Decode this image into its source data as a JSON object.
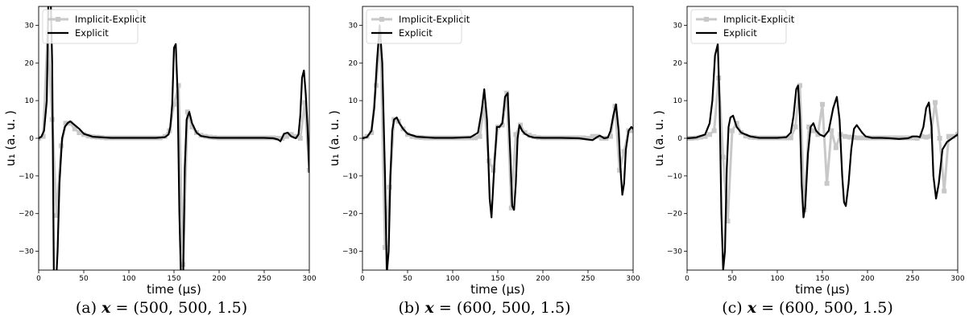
{
  "chart_data": [
    {
      "type": "line",
      "panel_label": "(a)",
      "caption_var": "x",
      "caption_eq": "= (500, 500, 1.5)",
      "xlabel": "time (μs)",
      "ylabel": "u₁ (a. u. )",
      "xlim": [
        0,
        300
      ],
      "ylim": [
        -35,
        35
      ],
      "xticks": [
        "0",
        "50",
        "100",
        "150",
        "200",
        "250",
        "300"
      ],
      "yticks": [
        "−30",
        "−20",
        "−10",
        "0",
        "10",
        "20",
        "30"
      ],
      "legend_position": "top-left",
      "series": [
        {
          "name": "Implicit-Explicit",
          "color": "#c8c8c8",
          "x": [
            0,
            5,
            10,
            15,
            20,
            25,
            30,
            35,
            40,
            45,
            50,
            55,
            60,
            65,
            70,
            75,
            80,
            85,
            90,
            95,
            100,
            105,
            110,
            115,
            120,
            125,
            130,
            135,
            140,
            145,
            150,
            155,
            160,
            165,
            170,
            175,
            180,
            185,
            190,
            195,
            200,
            205,
            210,
            215,
            220,
            225,
            230,
            235,
            240,
            245,
            250,
            255,
            260,
            265,
            270,
            275,
            280,
            285,
            290,
            295,
            300
          ],
          "y": [
            0,
            0.5,
            28,
            5,
            -20.5,
            -2,
            4,
            4,
            2.5,
            1.5,
            1,
            0.6,
            0.4,
            0.3,
            0.2,
            0.1,
            0.1,
            0.1,
            0.1,
            0.1,
            0.1,
            0.1,
            0.1,
            0.1,
            0.1,
            0.1,
            0.1,
            0.1,
            0.5,
            2,
            9,
            14,
            -33.5,
            7,
            3,
            1.5,
            0.8,
            0.5,
            0.3,
            0.2,
            0.1,
            0.1,
            0.1,
            0.1,
            0.1,
            0.1,
            0.1,
            0.1,
            0.1,
            0.1,
            0.1,
            0.1,
            0.1,
            0,
            0,
            0.5,
            1,
            0.5,
            0,
            9.5,
            -8.5
          ]
        },
        {
          "name": "Explicit",
          "color": "#000000",
          "x": [
            0,
            3,
            6,
            9,
            11,
            13,
            15,
            17,
            19,
            21,
            23,
            26,
            29,
            32,
            35,
            40,
            45,
            50,
            60,
            80,
            100,
            130,
            140,
            144,
            146,
            148,
            150,
            152,
            154,
            156,
            158,
            160,
            162,
            164,
            167,
            170,
            175,
            180,
            190,
            200,
            220,
            250,
            260,
            265,
            268,
            272,
            276,
            280,
            285,
            288,
            290,
            292,
            294,
            296,
            298,
            300
          ],
          "y": [
            0,
            0.4,
            2,
            10,
            40,
            40,
            20,
            -40,
            -40,
            -30,
            -12,
            0,
            3,
            4,
            4.5,
            3.5,
            2.5,
            1.2,
            0.4,
            0.1,
            0.1,
            0.1,
            0.3,
            1,
            3,
            9,
            24,
            25,
            12,
            -20,
            -40,
            -40,
            -8,
            5,
            7,
            4,
            1.5,
            0.6,
            0.2,
            0.1,
            0.1,
            0.1,
            0,
            -0.3,
            -0.8,
            1.2,
            1.5,
            0.5,
            0,
            1,
            6,
            16,
            18,
            12,
            3,
            -9
          ]
        }
      ]
    },
    {
      "type": "line",
      "panel_label": "(b)",
      "caption_var": "x",
      "caption_eq": "= (600, 500, 1.5)",
      "xlabel": "time (μs)",
      "ylabel": "u₁ (a. u. )",
      "xlim": [
        0,
        300
      ],
      "ylim": [
        -35,
        35
      ],
      "xticks": [
        "0",
        "50",
        "100",
        "150",
        "200",
        "250",
        "300"
      ],
      "yticks": [
        "−30",
        "−20",
        "−10",
        "0",
        "10",
        "20",
        "30"
      ],
      "legend_position": "top-left",
      "series": [
        {
          "name": "Implicit-Explicit",
          "color": "#c8c8c8",
          "x": [
            0,
            5,
            10,
            15,
            20,
            25,
            30,
            35,
            40,
            45,
            50,
            55,
            60,
            65,
            70,
            75,
            80,
            85,
            90,
            95,
            100,
            105,
            110,
            115,
            120,
            125,
            130,
            135,
            140,
            145,
            150,
            155,
            160,
            165,
            170,
            175,
            180,
            185,
            190,
            195,
            200,
            205,
            210,
            215,
            220,
            225,
            230,
            235,
            240,
            245,
            250,
            255,
            260,
            265,
            270,
            275,
            280,
            285,
            290,
            295,
            300
          ],
          "y": [
            0,
            0.5,
            1.5,
            14,
            28,
            -29,
            -13,
            5,
            4.5,
            2.5,
            1,
            0.5,
            0.3,
            0.2,
            0.1,
            0.1,
            0.1,
            0.1,
            0.1,
            0.1,
            0.1,
            0.1,
            0.1,
            0.1,
            0.1,
            0.1,
            0.5,
            9,
            -6,
            -8.5,
            3,
            3.5,
            12,
            -18.5,
            1,
            3.5,
            1.5,
            0.8,
            0.4,
            0.2,
            0.1,
            0.1,
            0.1,
            0.1,
            0.1,
            0.1,
            0.1,
            0.1,
            0.1,
            0.1,
            0,
            0.5,
            0.5,
            0,
            0,
            0.5,
            8.5,
            -8.5,
            -3.5,
            2,
            2
          ]
        },
        {
          "name": "Explicit",
          "color": "#000000",
          "x": [
            0,
            5,
            10,
            13,
            16,
            19,
            22,
            25,
            27,
            29,
            31,
            33,
            35,
            38,
            41,
            45,
            50,
            60,
            80,
            100,
            120,
            128,
            132,
            135,
            138,
            141,
            143,
            146,
            149,
            152,
            155,
            158,
            161,
            164,
            166,
            168,
            170,
            172,
            174,
            177,
            180,
            185,
            190,
            200,
            220,
            240,
            255,
            260,
            263,
            268,
            272,
            275,
            278,
            281,
            284,
            286,
            288,
            290,
            292,
            295,
            298,
            300
          ],
          "y": [
            0,
            0.3,
            2,
            8,
            20,
            30,
            20,
            -10,
            -36,
            -30,
            -10,
            2,
            5,
            5.5,
            4,
            2.5,
            1.2,
            0.4,
            0.1,
            0.1,
            0.3,
            1.5,
            7,
            13,
            5,
            -16,
            -21,
            -8,
            3,
            3,
            4,
            11,
            12,
            -5,
            -18,
            -19,
            -12,
            0,
            3.5,
            2,
            1.2,
            0.5,
            0.2,
            0.1,
            0.1,
            0,
            -0.5,
            0.3,
            0.7,
            0,
            0.2,
            2,
            6,
            9,
            2,
            -8,
            -15,
            -12,
            -3,
            2,
            3,
            2.5
          ]
        }
      ]
    },
    {
      "type": "line",
      "panel_label": "(c)",
      "caption_var": "x",
      "caption_eq": "= (600, 500, 1.5)",
      "xlabel": "time (μs)",
      "ylabel": "u₁ (a. u. )",
      "xlim": [
        0,
        300
      ],
      "ylim": [
        -35,
        35
      ],
      "xticks": [
        "0",
        "50",
        "100",
        "150",
        "200",
        "250",
        "300"
      ],
      "yticks": [
        "−30",
        "−20",
        "−10",
        "0",
        "10",
        "20",
        "30"
      ],
      "legend_position": "top-left",
      "series": [
        {
          "name": "Implicit-Explicit",
          "color": "#c8c8c8",
          "x": [
            0,
            5,
            10,
            15,
            20,
            25,
            30,
            35,
            40,
            45,
            50,
            55,
            60,
            65,
            70,
            75,
            80,
            85,
            90,
            95,
            100,
            105,
            110,
            115,
            120,
            125,
            130,
            135,
            140,
            145,
            150,
            155,
            160,
            165,
            170,
            175,
            180,
            185,
            190,
            195,
            200,
            205,
            210,
            215,
            220,
            225,
            230,
            235,
            240,
            245,
            250,
            255,
            260,
            265,
            270,
            275,
            280,
            285,
            290,
            295,
            300
          ],
          "y": [
            0,
            0,
            0.1,
            0.3,
            0.5,
            1,
            2,
            16,
            -5,
            -22,
            2,
            4,
            1.5,
            0.6,
            0.3,
            0.2,
            0.1,
            0.1,
            0.1,
            0.1,
            0.1,
            0.1,
            0.1,
            0.1,
            3,
            14,
            -19,
            3,
            2,
            1,
            9,
            -12,
            2,
            -2.5,
            1,
            0.5,
            0.3,
            0.2,
            0.1,
            0.1,
            0.1,
            0.1,
            0.1,
            0.1,
            0.1,
            0.1,
            0.1,
            0.1,
            0.1,
            0.1,
            0.1,
            0,
            0.5,
            0.3,
            0.5,
            9.5,
            0,
            -14,
            0.5,
            0.5,
            1
          ]
        },
        {
          "name": "Explicit",
          "color": "#000000",
          "x": [
            0,
            10,
            20,
            25,
            28,
            31,
            34,
            36,
            38,
            40,
            42,
            44,
            46,
            48,
            51,
            55,
            60,
            70,
            80,
            100,
            110,
            115,
            118,
            121,
            123,
            125,
            127,
            129,
            131,
            134,
            137,
            140,
            143,
            147,
            152,
            157,
            162,
            166,
            169,
            172,
            174,
            176,
            179,
            182,
            185,
            188,
            191,
            194,
            198,
            205,
            215,
            225,
            235,
            245,
            250,
            255,
            258,
            262,
            265,
            268,
            271,
            273,
            276,
            279,
            283,
            288,
            294,
            300
          ],
          "y": [
            0,
            0.2,
            1,
            4,
            10,
            22,
            25,
            10,
            -20,
            -35,
            -30,
            -8,
            3,
            5.5,
            6,
            3,
            1.5,
            0.5,
            0.1,
            0.1,
            0.3,
            1.5,
            6,
            13,
            14,
            6,
            -12,
            -21,
            -18,
            -4,
            3,
            4,
            2,
            1,
            0.5,
            2,
            8,
            11,
            5,
            -10,
            -17,
            -18,
            -12,
            -3,
            2.5,
            3.5,
            2.5,
            1.5,
            0.5,
            0.1,
            0.1,
            0,
            -0.2,
            0,
            0.5,
            0.5,
            0.3,
            3,
            8,
            9.5,
            3,
            -10,
            -16,
            -12,
            -3,
            -1,
            0,
            1
          ]
        }
      ]
    }
  ]
}
